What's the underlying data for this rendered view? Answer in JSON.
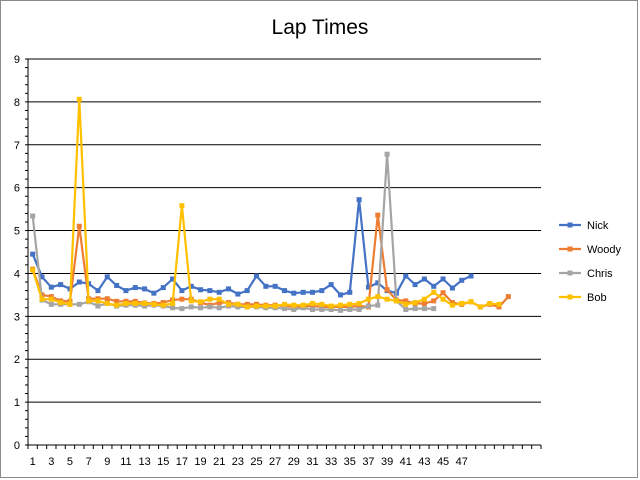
{
  "chart_data": {
    "type": "line",
    "title": "Lap Times",
    "xlabel": "",
    "ylabel": "",
    "ylim": [
      0,
      9
    ],
    "yticks": [
      0,
      1,
      2,
      3,
      4,
      5,
      6,
      7,
      8,
      9
    ],
    "xtick_labels": [
      1,
      3,
      5,
      7,
      9,
      11,
      13,
      15,
      17,
      19,
      21,
      23,
      25,
      27,
      29,
      31,
      33,
      35,
      37,
      39,
      41,
      43,
      45,
      47
    ],
    "x_categories": 55,
    "grid": true,
    "legend_position": "right",
    "series": [
      {
        "name": "Nick",
        "color": "#4472C4",
        "values": [
          4.45,
          3.92,
          3.68,
          3.74,
          3.64,
          3.8,
          3.76,
          3.6,
          3.92,
          3.72,
          3.6,
          3.67,
          3.64,
          3.54,
          3.67,
          3.87,
          3.6,
          3.7,
          3.62,
          3.6,
          3.56,
          3.64,
          3.52,
          3.6,
          3.94,
          3.7,
          3.7,
          3.6,
          3.54,
          3.56,
          3.56,
          3.6,
          3.74,
          3.5,
          3.56,
          5.72,
          3.68,
          3.78,
          3.6,
          3.54,
          3.94,
          3.74,
          3.87,
          3.7,
          3.87,
          3.66,
          3.84,
          3.94
        ]
      },
      {
        "name": "Woody",
        "color": "#ED7D31",
        "values": [
          4.1,
          3.5,
          3.46,
          3.36,
          3.35,
          5.1,
          3.41,
          3.41,
          3.41,
          3.35,
          3.35,
          3.35,
          3.31,
          3.3,
          3.32,
          3.38,
          3.4,
          3.4,
          3.32,
          3.26,
          3.32,
          3.32,
          3.28,
          3.28,
          3.28,
          3.26,
          3.26,
          3.24,
          3.22,
          3.24,
          3.24,
          3.22,
          3.22,
          3.22,
          3.22,
          3.24,
          3.22,
          5.36,
          3.62,
          3.38,
          3.36,
          3.3,
          3.3,
          3.36,
          3.55,
          3.32,
          3.28,
          3.34,
          3.22,
          3.28,
          3.22,
          3.46
        ]
      },
      {
        "name": "Chris",
        "color": "#A5A5A5",
        "values": [
          5.34,
          3.38,
          3.28,
          3.28,
          3.28,
          3.28,
          3.34,
          3.24,
          3.3,
          3.24,
          3.26,
          3.26,
          3.24,
          3.26,
          3.24,
          3.2,
          3.18,
          3.22,
          3.2,
          3.22,
          3.2,
          3.24,
          3.22,
          3.22,
          3.22,
          3.2,
          3.2,
          3.18,
          3.16,
          3.2,
          3.16,
          3.16,
          3.16,
          3.14,
          3.16,
          3.16,
          3.24,
          3.26,
          6.78,
          3.36,
          3.16,
          3.18,
          3.18,
          3.18
        ]
      },
      {
        "name": "Bob",
        "color": "#FFC000",
        "values": [
          4.08,
          3.4,
          3.4,
          3.32,
          3.28,
          8.06,
          3.36,
          3.36,
          3.3,
          3.26,
          3.3,
          3.3,
          3.3,
          3.28,
          3.26,
          3.3,
          5.58,
          3.36,
          3.34,
          3.4,
          3.4,
          3.28,
          3.28,
          3.22,
          3.24,
          3.24,
          3.24,
          3.28,
          3.26,
          3.26,
          3.3,
          3.28,
          3.24,
          3.26,
          3.28,
          3.3,
          3.4,
          3.46,
          3.4,
          3.36,
          3.28,
          3.32,
          3.4,
          3.56,
          3.4,
          3.26,
          3.3,
          3.34,
          3.22,
          3.3,
          3.28
        ]
      }
    ]
  }
}
